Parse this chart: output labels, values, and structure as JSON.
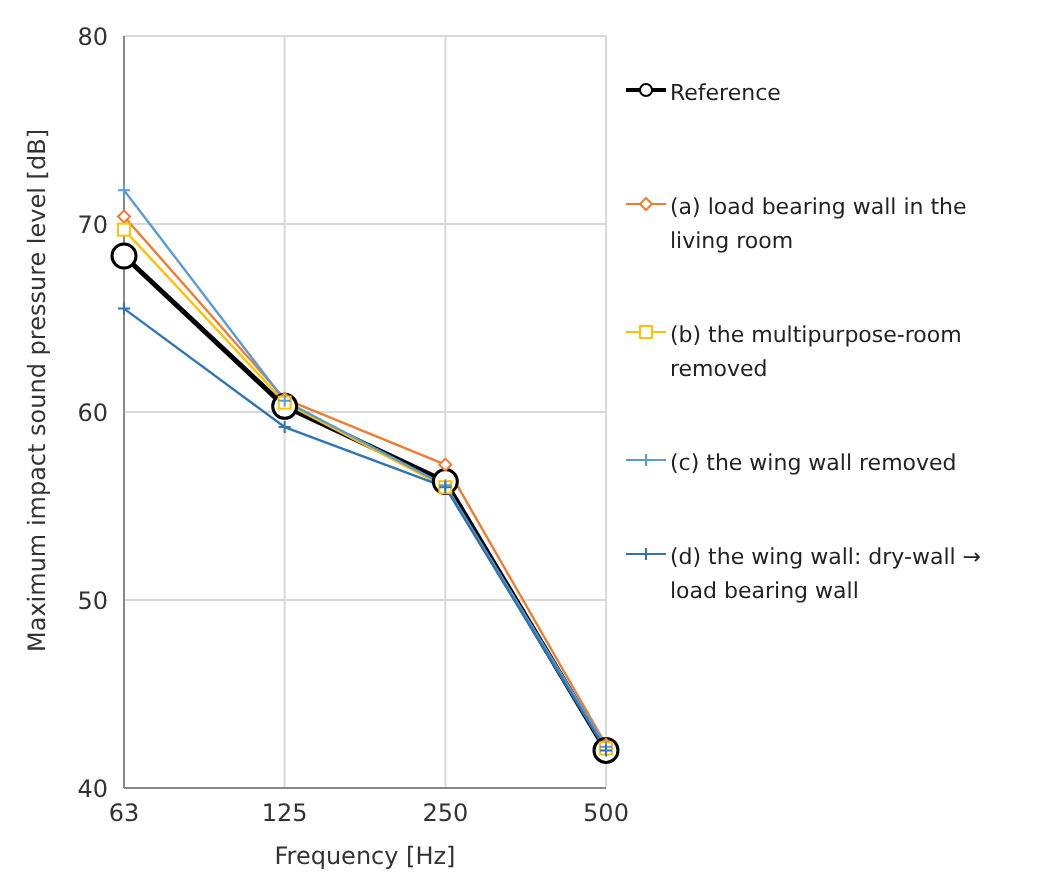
{
  "chart_data": {
    "type": "line",
    "xlabel": "Frequency [Hz]",
    "ylabel": "Maximum impact sound pressure level [dB]",
    "categories": [
      "63",
      "125",
      "250",
      "500"
    ],
    "ylim": [
      40,
      80
    ],
    "yticks": [
      40,
      50,
      60,
      70,
      80
    ],
    "grid": true,
    "legend": "right",
    "series": [
      {
        "name": "Reference",
        "color": "#000000",
        "marker": "circle",
        "values": [
          68.3,
          60.3,
          56.3,
          42.0
        ]
      },
      {
        "name": "(a) load bearing wall in the living room",
        "color": "#ed7d31",
        "marker": "diamond",
        "values": [
          70.4,
          60.7,
          57.2,
          42.3
        ]
      },
      {
        "name": "(b) the multipurpose-room removed",
        "color": "#ffc000",
        "marker": "square",
        "values": [
          69.7,
          60.5,
          56.0,
          42.1
        ]
      },
      {
        "name": "(c) the wing wall removed",
        "color": "#5b9bd5",
        "marker": "cross",
        "values": [
          71.8,
          60.6,
          56.1,
          42.2
        ]
      },
      {
        "name": "(d) the wing wall: dry-wall → load bearing wall",
        "color": "#2e75b6",
        "marker": "cross",
        "values": [
          65.5,
          59.2,
          56.0,
          42.0
        ]
      }
    ]
  }
}
